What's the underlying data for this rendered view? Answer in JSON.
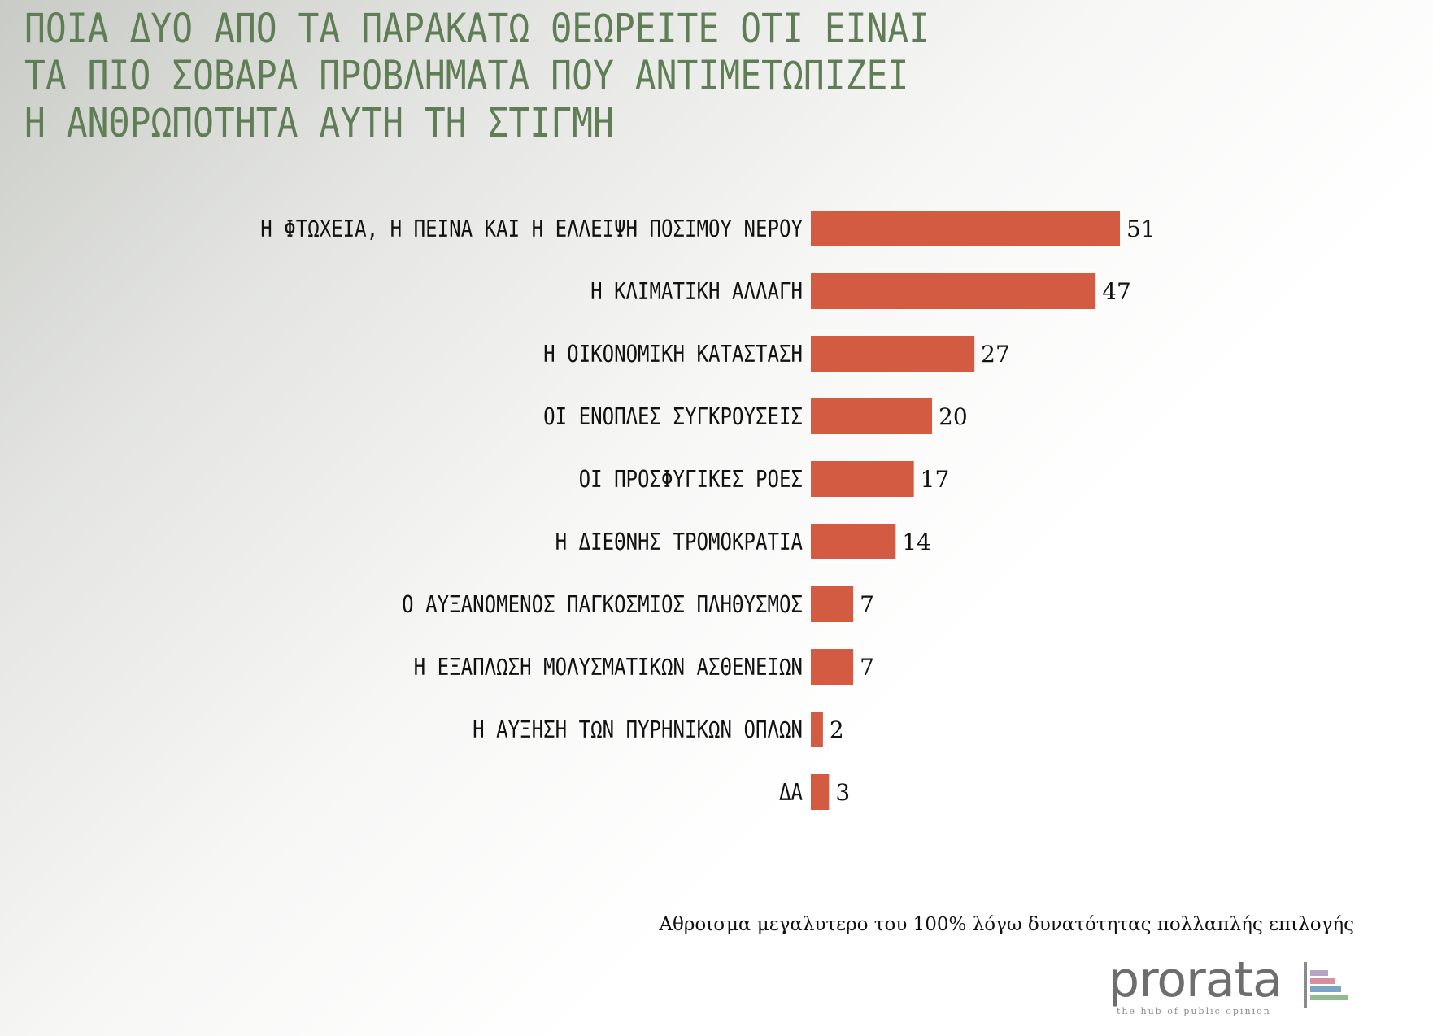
{
  "title_lines": [
    "ΠΟΙΑ ΔΥΟ ΑΠΟ ΤΑ ΠΑΡΑΚΑΤΩ ΘΕΩΡΕΙΤΕ ΟΤΙ ΕΙΝΑΙ",
    "ΤΑ ΠΙΟ ΣΟΒΑΡΑ ΠΡΟΒΛΗΜΑΤΑ ΠΟΥ ΑΝΤΙΜΕΤΩΠΙΖΕΙ",
    "Η ΑΝΘΡΩΠΟΤΗΤΑ ΑΥΤΗ ΤΗ ΣΤΙΓΜΗ"
  ],
  "colors": {
    "title": "#5f7e55",
    "bar": "#d35b42",
    "text": "#111111"
  },
  "chart_data": {
    "type": "bar",
    "orientation": "horizontal",
    "title": "ΠΟΙΑ ΔΥΟ ΑΠΟ ΤΑ ΠΑΡΑΚΑΤΩ ΘΕΩΡΕΙΤΕ ΟΤΙ ΕΙΝΑΙ ΤΑ ΠΙΟ ΣΟΒΑΡΑ ΠΡΟΒΛΗΜΑΤΑ ΠΟΥ ΑΝΤΙΜΕΤΩΠΙΖΕΙ Η ΑΝΘΡΩΠΟΤΗΤΑ ΑΥΤΗ ΤΗ ΣΤΙΓΜΗ",
    "categories": [
      "Η ΦΤΩΧΕΙΑ, Η ΠΕΙΝΑ ΚΑΙ Η ΕΛΛΕΙΨΗ ΠΟΣΙΜΟΥ ΝΕΡΟΥ",
      "Η ΚΛΙΜΑΤΙΚΗ ΑΛΛΑΓΗ",
      "Η ΟΙΚΟΝΟΜΙΚΗ ΚΑΤΑΣΤΑΣΗ",
      "ΟΙ ΕΝΟΠΛΕΣ ΣΥΓΚΡΟΥΣΕΙΣ",
      "ΟΙ ΠΡΟΣΦΥΓΙΚΕΣ ΡΟΕΣ",
      "Η ΔΙΕΘΝΗΣ ΤΡΟΜΟΚΡΑΤΙΑ",
      "Ο ΑΥΞΑΝΟΜΕΝΟΣ ΠΑΓΚΟΣΜΙΟΣ ΠΛΗΘΥΣΜΟΣ",
      "Η ΕΞΑΠΛΩΣΗ ΜΟΛΥΣΜΑΤΙΚΩΝ ΑΣΘΕΝΕΙΩΝ",
      "Η ΑΥΞΗΣΗ ΤΩΝ ΠΥΡΗΝΙΚΩΝ ΟΠΛΩΝ",
      "ΔΑ"
    ],
    "values": [
      51,
      47,
      27,
      20,
      17,
      14,
      7,
      7,
      2,
      3
    ],
    "data_labels": true,
    "axis_visible": false,
    "grid": false,
    "legend": "none",
    "xlim": [
      0,
      51
    ]
  },
  "footnote": "Αθροισμα μεγαλυτερο του 100% λόγω δυνατότητας πολλαπλής επιλογής",
  "logo": {
    "wordmark": "prorata",
    "tagline": "the hub of public opinion",
    "mark_colors": [
      "#b7a2c8",
      "#d98ea0",
      "#7aa3c6",
      "#8ebc8a",
      "#c9c9c9"
    ]
  }
}
